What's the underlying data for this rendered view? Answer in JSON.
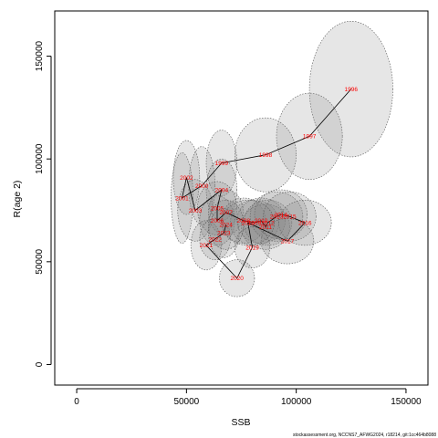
{
  "chart_data": {
    "type": "scatter",
    "title": "",
    "xlabel": "SSB",
    "ylabel": "R(age 2)",
    "xlim": [
      -10000,
      160000
    ],
    "ylim": [
      -10000,
      172000
    ],
    "xticks": [
      0,
      50000,
      100000,
      150000
    ],
    "yticks": [
      0,
      50000,
      100000,
      150000
    ],
    "xtick_labels": [
      "0",
      "50000",
      "100000",
      "150000"
    ],
    "ytick_labels": [
      "0",
      "50000",
      "100000",
      "150000"
    ],
    "grid": false,
    "footnote": "stockassessment.org, NCCNS7_AFWG2024, r18214, git:1cc464b8088",
    "colors": {
      "path": "#000000",
      "labels": "#ff0000",
      "ellipse_fill": "rgba(128,128,128,0.2)",
      "ellipse_stroke": "#555555"
    },
    "points": [
      {
        "year": "1996",
        "x": 125000,
        "y": 134000,
        "rx": 19000,
        "ry": 33000
      },
      {
        "year": "1997",
        "x": 106000,
        "y": 111000,
        "rx": 15000,
        "ry": 21000
      },
      {
        "year": "1998",
        "x": 86000,
        "y": 102000,
        "rx": 14000,
        "ry": 18000
      },
      {
        "year": "1999",
        "x": 66000,
        "y": 98000,
        "rx": 7000,
        "ry": 16000
      },
      {
        "year": "2000",
        "x": 57000,
        "y": 87000,
        "rx": 6000,
        "ry": 19000
      },
      {
        "year": "2001",
        "x": 48000,
        "y": 81000,
        "rx": 5000,
        "ry": 22000
      },
      {
        "year": "2002",
        "x": 50000,
        "y": 91000,
        "rx": 6000,
        "ry": 18000
      },
      {
        "year": "2003",
        "x": 54000,
        "y": 75000,
        "rx": 8000,
        "ry": 15000
      },
      {
        "year": "2004",
        "x": 66000,
        "y": 85000,
        "rx": 7000,
        "ry": 15000
      },
      {
        "year": "2005",
        "x": 64000,
        "y": 76000,
        "rx": 9000,
        "ry": 13000
      },
      {
        "year": "2006",
        "x": 64000,
        "y": 70000,
        "rx": 8000,
        "ry": 12000
      },
      {
        "year": "2007",
        "x": 68000,
        "y": 74000,
        "rx": 8000,
        "ry": 11000
      },
      {
        "year": "2008",
        "x": 76000,
        "y": 70000,
        "rx": 10000,
        "ry": 11000
      },
      {
        "year": "2009",
        "x": 81000,
        "y": 69000,
        "rx": 11000,
        "ry": 11000
      },
      {
        "year": "2010",
        "x": 84000,
        "y": 70000,
        "rx": 11000,
        "ry": 11000
      },
      {
        "year": "2011",
        "x": 86000,
        "y": 67000,
        "rx": 11000,
        "ry": 11000
      },
      {
        "year": "2012",
        "x": 87000,
        "y": 69000,
        "rx": 11000,
        "ry": 11000
      },
      {
        "year": "2013",
        "x": 91000,
        "y": 72000,
        "rx": 12000,
        "ry": 12000
      },
      {
        "year": "2014",
        "x": 93000,
        "y": 73000,
        "rx": 12000,
        "ry": 12000
      },
      {
        "year": "2015",
        "x": 97000,
        "y": 72000,
        "rx": 12000,
        "ry": 12000
      },
      {
        "year": "2016",
        "x": 104000,
        "y": 69000,
        "rx": 12000,
        "ry": 11000
      },
      {
        "year": "2017",
        "x": 96000,
        "y": 60000,
        "rx": 12000,
        "ry": 11000
      },
      {
        "year": "2018",
        "x": 78000,
        "y": 69000,
        "rx": 12000,
        "ry": 11000
      },
      {
        "year": "2019",
        "x": 80000,
        "y": 57000,
        "rx": 8000,
        "ry": 10000
      },
      {
        "year": "2020",
        "x": 73000,
        "y": 42000,
        "rx": 8000,
        "ry": 9000
      },
      {
        "year": "2021",
        "x": 59000,
        "y": 58000,
        "rx": 7000,
        "ry": 12000
      },
      {
        "year": "2022",
        "x": 63000,
        "y": 61000,
        "rx": 7000,
        "ry": 10000
      },
      {
        "year": "2023",
        "x": 67000,
        "y": 64000,
        "rx": 7000,
        "ry": 12000
      },
      {
        "year": "2024",
        "x": 68000,
        "y": 68000,
        "rx": 8000,
        "ry": 12000
      }
    ]
  }
}
